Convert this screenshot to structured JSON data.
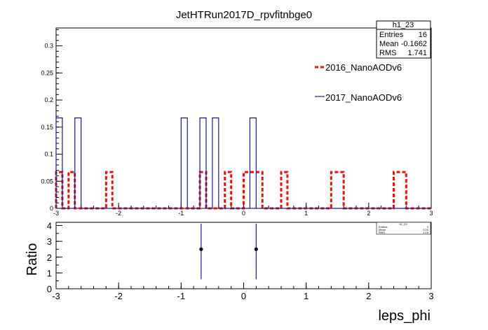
{
  "title": "JetHTRun2017D_rpvfitnbge0",
  "stats_box": {
    "name": "h1_23",
    "rows": [
      {
        "label": "Entries",
        "value": "16"
      },
      {
        "label": "Mean",
        "value": "-0.1662"
      },
      {
        "label": "RMS",
        "value": "1.741"
      }
    ]
  },
  "stats_box_small": {
    "name": "h1_23",
    "rows": [
      {
        "label": "Entries",
        "value": "3"
      },
      {
        "label": "Mean",
        "value": "0.24"
      },
      {
        "label": "RMS",
        "value": "1.15"
      }
    ]
  },
  "colors": {
    "series_2016": "#e8100c",
    "series_2017": "#1a1a8c",
    "axis": "#000000"
  },
  "chart_data": [
    {
      "type": "line",
      "panel": "top",
      "x_range": [
        -3,
        3
      ],
      "ylim": [
        0,
        0.333
      ],
      "x_ticks": [
        "-3",
        "-2",
        "-1",
        "0",
        "1",
        "2",
        "3"
      ],
      "y_ticks": [
        "0",
        "0.05",
        "0.1",
        "0.15",
        "0.2",
        "0.25",
        "0.3"
      ],
      "legend_placement": "top-right",
      "bin_edges": [
        -3,
        -2.9,
        -2.8,
        -2.7,
        -2.6,
        -2.5,
        -2.4,
        -2.3,
        -2.2,
        -2.1,
        -2,
        -1.9,
        -1.8,
        -1.7,
        -1.6,
        -1.5,
        -1.4,
        -1.3,
        -1.2,
        -1.1,
        -1,
        -0.9,
        -0.8,
        -0.7,
        -0.6,
        -0.5,
        -0.4,
        -0.3,
        -0.2,
        -0.1,
        0,
        0.1,
        0.2,
        0.3,
        0.4,
        0.5,
        0.6,
        0.7,
        0.8,
        0.9,
        1,
        1.1,
        1.2,
        1.3,
        1.4,
        1.5,
        1.6,
        1.7,
        1.8,
        1.9,
        2,
        2.1,
        2.2,
        2.3,
        2.4,
        2.5,
        2.6,
        2.7,
        2.8,
        2.9,
        3
      ],
      "series": [
        {
          "name": "2016_NanoAODv6",
          "style": "dashed",
          "values": [
            0.067,
            0.0,
            0.067,
            0.0,
            0.0,
            0.0,
            0.0,
            0.0,
            0.067,
            0.0,
            0.0,
            0.0,
            0.0,
            0.0,
            0.0,
            0.0,
            0.0,
            0.0,
            0.0,
            0.0,
            0.0,
            0.0,
            0.0,
            0.067,
            0.0,
            0.0,
            0.0,
            0.067,
            0.0,
            0.0,
            0.067,
            0.067,
            0.067,
            0.0,
            0.0,
            0.0,
            0.067,
            0.0,
            0.0,
            0.0,
            0.0,
            0.0,
            0.0,
            0.0,
            0.067,
            0.067,
            0.0,
            0.0,
            0.0,
            0.0,
            0.0,
            0.0,
            0.0,
            0.0,
            0.067,
            0.067,
            0.0,
            0.0,
            0.0,
            0.0
          ]
        },
        {
          "name": "2017_NanoAODv6",
          "style": "solid",
          "values": [
            0.167,
            0.0,
            0.0,
            0.167,
            0.0,
            0.0,
            0.0,
            0.0,
            0.0,
            0.0,
            0.0,
            0.0,
            0.0,
            0.0,
            0.0,
            0.0,
            0.0,
            0.0,
            0.0,
            0.0,
            0.167,
            0.0,
            0.0,
            0.167,
            0.0,
            0.167,
            0.0,
            0.0,
            0.0,
            0.0,
            0.0,
            0.167,
            0.0,
            0.0,
            0.0,
            0.0,
            0.0,
            0.0,
            0.0,
            0.0,
            0.0,
            0.0,
            0.0,
            0.0,
            0.0,
            0.0,
            0.0,
            0.0,
            0.0,
            0.0,
            0.0,
            0.0,
            0.0,
            0.0,
            0.0,
            0.0,
            0.0,
            0.0,
            0.0,
            0.0
          ]
        }
      ]
    },
    {
      "type": "scatter",
      "panel": "bottom",
      "x_range": [
        -3,
        3
      ],
      "ylim": [
        0,
        4.2
      ],
      "x_ticks": [
        "-3",
        "-2",
        "-1",
        "0",
        "1",
        "2",
        "3"
      ],
      "y_ticks": [
        "0",
        "1",
        "2",
        "3",
        "4"
      ],
      "xlabel": "leps_phi",
      "ylabel": "Ratio",
      "points": [
        {
          "x": -0.68,
          "y": 2.5,
          "err": 1.9
        },
        {
          "x": 0.2,
          "y": 2.5,
          "err": 1.9
        }
      ]
    }
  ]
}
